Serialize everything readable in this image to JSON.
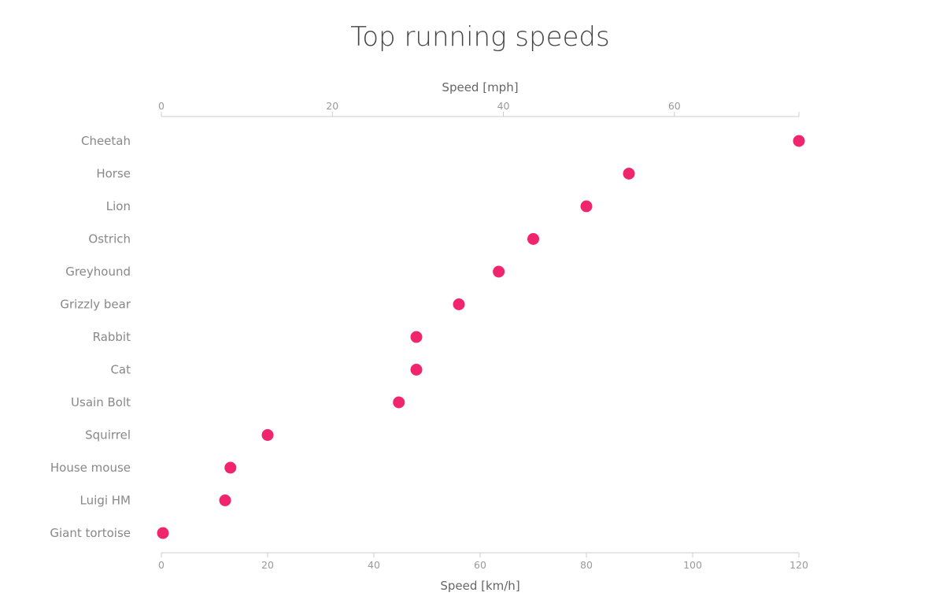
{
  "chart_data": {
    "type": "scatter",
    "title": "Top running speeds",
    "xlabel": "Speed [km/h]",
    "x2label": "Speed [mph]",
    "xlim": [
      0,
      120
    ],
    "xticks": [
      "0",
      "20",
      "40",
      "60",
      "80",
      "100",
      "120"
    ],
    "x2lim_mph": [
      0,
      74.56
    ],
    "x2ticks": [
      "0",
      "20",
      "40",
      "60"
    ],
    "grid": false,
    "marker_color": "#f0256d",
    "highlight_label_color": "#e8336f",
    "label_color": "#888888",
    "categories": [
      "Cheetah",
      "Horse",
      "Lion",
      "Ostrich",
      "Greyhound",
      "Grizzly bear",
      "Rabbit",
      "Cat",
      "Usain Bolt",
      "Squirrel",
      "House mouse",
      "Luigi HM",
      "Giant tortoise"
    ],
    "values": [
      120,
      88,
      80,
      70,
      63.5,
      56,
      48,
      48,
      44.7,
      20,
      13,
      12,
      0.3
    ],
    "highlighted": [
      "Usain Bolt",
      "Luigi HM"
    ]
  }
}
